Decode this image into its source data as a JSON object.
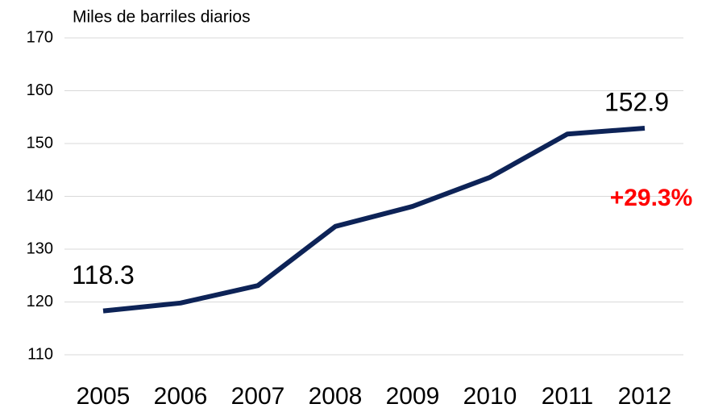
{
  "chart_data": {
    "type": "line",
    "y_axis_label": "Miles de barriles diarios",
    "categories": [
      "2005",
      "2006",
      "2007",
      "2008",
      "2009",
      "2010",
      "2011",
      "2012"
    ],
    "values": [
      118.3,
      119.8,
      123.1,
      134.3,
      138.1,
      143.6,
      151.8,
      152.9
    ],
    "color": "#0d2357",
    "annotation": "+29.3%",
    "annotation_color": "#ff0000",
    "ylim": [
      110,
      170
    ],
    "yticks": [
      110,
      120,
      130,
      140,
      150,
      160,
      170
    ],
    "grid": true
  }
}
